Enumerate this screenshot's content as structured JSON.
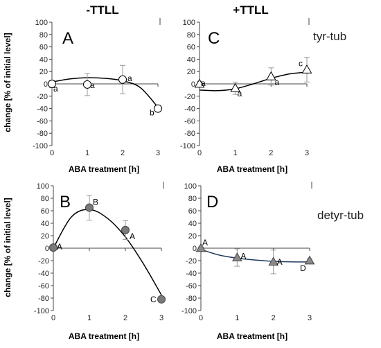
{
  "col_titles": [
    "-TTLL",
    "+TTLL"
  ],
  "row_labels": [
    "tyr-tub",
    "detyr-tub"
  ],
  "ylabel": "change [% of initial level]",
  "xlabel": "ABA treatment [h]",
  "chart_data": [
    {
      "panel": "A",
      "type": "scatter",
      "x": [
        0,
        1,
        2,
        3
      ],
      "y": [
        0,
        -1,
        7,
        -40
      ],
      "err": [
        6,
        18,
        23,
        5
      ],
      "labels": [
        "a",
        "a",
        "a",
        "b"
      ],
      "marker": "circle-open",
      "fit": [
        [
          0,
          3
        ],
        [
          0.5,
          8
        ],
        [
          1,
          10
        ],
        [
          1.5,
          9
        ],
        [
          2,
          5
        ],
        [
          2.5,
          -6
        ],
        [
          3,
          -38
        ]
      ],
      "ylim": [
        -100,
        100
      ],
      "xlim": [
        0,
        3
      ],
      "yticks": [
        -100,
        -80,
        -60,
        -40,
        -20,
        0,
        20,
        40,
        60,
        80,
        100
      ],
      "xticks": [
        0,
        1,
        2,
        3
      ]
    },
    {
      "panel": "C",
      "type": "scatter",
      "x": [
        0,
        1,
        2,
        3
      ],
      "y": [
        0,
        -7,
        12,
        23
      ],
      "err": [
        4,
        10,
        14,
        20
      ],
      "labels": [
        "a",
        "a",
        "a",
        "c"
      ],
      "marker": "triangle-open",
      "fit": [
        [
          0,
          -10
        ],
        [
          0.5,
          -11
        ],
        [
          1,
          -8
        ],
        [
          1.5,
          0
        ],
        [
          2,
          9
        ],
        [
          2.5,
          16
        ],
        [
          3,
          19
        ]
      ],
      "ylim": [
        -100,
        100
      ],
      "xlim": [
        0,
        3
      ],
      "yticks": [
        -100,
        -80,
        -60,
        -40,
        -20,
        0,
        20,
        40,
        60,
        80,
        100
      ],
      "xticks": [
        0,
        1,
        2,
        3
      ]
    },
    {
      "panel": "B",
      "type": "scatter",
      "x": [
        0,
        1,
        2,
        3
      ],
      "y": [
        1,
        65,
        29,
        -82
      ],
      "err": [
        0,
        20,
        15,
        3
      ],
      "labels": [
        "A",
        "B",
        "A",
        "C"
      ],
      "marker": "circle-filled",
      "fit": [
        [
          0,
          0
        ],
        [
          0.5,
          50
        ],
        [
          1,
          62
        ],
        [
          1.5,
          48
        ],
        [
          2,
          18
        ],
        [
          2.5,
          -25
        ],
        [
          3,
          -75
        ]
      ],
      "ylim": [
        -100,
        100
      ],
      "xlim": [
        0,
        3
      ],
      "yticks": [
        -100,
        -80,
        -60,
        -40,
        -20,
        0,
        20,
        40,
        60,
        80,
        100
      ],
      "xticks": [
        0,
        1,
        2,
        3
      ]
    },
    {
      "panel": "D",
      "type": "scatter",
      "x": [
        0,
        1,
        2,
        3
      ],
      "y": [
        0,
        -15,
        -22,
        -20
      ],
      "err": [
        2,
        14,
        19,
        3
      ],
      "labels": [
        "A",
        "A",
        "A",
        "D"
      ],
      "marker": "triangle-filled",
      "fit": [
        [
          0,
          -2
        ],
        [
          0.5,
          -11
        ],
        [
          1,
          -16
        ],
        [
          1.5,
          -19
        ],
        [
          2,
          -21
        ],
        [
          2.5,
          -22
        ],
        [
          3,
          -22
        ]
      ],
      "ylim": [
        -100,
        100
      ],
      "xlim": [
        0,
        3
      ],
      "yticks": [
        -100,
        -80,
        -60,
        -40,
        -20,
        0,
        20,
        40,
        60,
        80,
        100
      ],
      "xticks": [
        0,
        1,
        2,
        3
      ]
    }
  ]
}
